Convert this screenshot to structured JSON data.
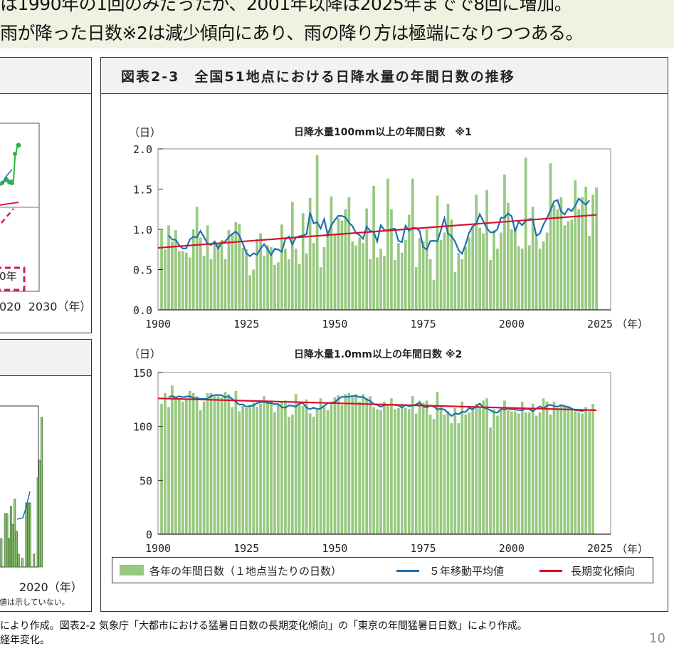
{
  "banner": {
    "line1": "は1990年の1回のみだったが、2001年以降は2025年までで8回に増加。",
    "line2": "雨が降った日数※2は減少傾向にあり、雨の降り方は極端になりつつある。"
  },
  "left_panel_top": {
    "axis_labels": "020  2030（年）",
    "callout": "0年"
  },
  "left_panel_bottom": {
    "axis_label": "2020（年）",
    "note": "値は示していない。"
  },
  "right_panel": {
    "title": "図表2-3　全国51地点における日降水量の年間日数の推移"
  },
  "colors": {
    "bars": "#97c97f",
    "moving_average": "#1f6fb2",
    "trend": "#d7102a",
    "pink_callout": "#d6166a"
  },
  "chart_data": [
    {
      "type": "bar",
      "title": "日降水量100mm以上の年間日数　※1",
      "ylabel": "（日）",
      "xlabel": "（年）",
      "ylim": [
        0,
        2.0
      ],
      "yticks": [
        "0.0",
        "0.5",
        "1.0",
        "1.5",
        "2.0"
      ],
      "xticks": [
        "1900",
        "1925",
        "1950",
        "1975",
        "2000",
        "2025"
      ],
      "xlim": [
        1900,
        2025
      ],
      "start_year": 1901,
      "values": [
        0.99,
        0.75,
        1.05,
        0.85,
        0.99,
        0.73,
        0.73,
        0.71,
        0.65,
        1.0,
        1.28,
        0.9,
        0.67,
        1.05,
        0.63,
        0.86,
        0.82,
        0.87,
        0.63,
        0.99,
        0.94,
        1.09,
        1.07,
        0.77,
        0.75,
        0.43,
        0.5,
        0.88,
        0.95,
        0.67,
        0.8,
        0.78,
        0.56,
        0.59,
        1.06,
        0.76,
        0.63,
        1.34,
        0.76,
        0.57,
        1.2,
        0.7,
        1.39,
        0.83,
        1.92,
        0.53,
        0.78,
        0.99,
        1.41,
        0.93,
        1.14,
        1.11,
        1.25,
        1.4,
        0.85,
        0.8,
        0.9,
        0.83,
        1.26,
        0.63,
        1.54,
        0.65,
        0.76,
        0.67,
        1.63,
        1.25,
        0.62,
        0.83,
        0.71,
        0.87,
        1.18,
        1.63,
        0.53,
        0.89,
        0.85,
        1.0,
        0.63,
        0.37,
        1.42,
        0.87,
        0.96,
        1.32,
        1.12,
        0.47,
        0.71,
        0.63,
        0.78,
        0.9,
        1.05,
        1.43,
        1.02,
        0.95,
        1.49,
        0.62,
        0.99,
        0.76,
        0.96,
        1.68,
        1.33,
        1.0,
        1.02,
        0.79,
        0.76,
        1.89,
        0.8,
        1.28,
        0.9,
        0.76,
        0.85,
        0.96,
        1.82,
        1.3,
        1.25,
        1.4,
        1.05,
        1.1,
        1.12,
        1.61,
        1.25,
        1.4,
        1.53,
        0.92,
        1.43,
        1.52
      ],
      "trend": {
        "from": [
          1900,
          0.77
        ],
        "to": [
          2024,
          1.18
        ]
      },
      "grid": false
    },
    {
      "type": "bar",
      "title": "日降水量1.0mm以上の年間日数 ※2",
      "ylabel": "（日）",
      "xlabel": "（年）",
      "ylim": [
        0,
        150
      ],
      "yticks": [
        "0",
        "50",
        "100",
        "150"
      ],
      "xticks": [
        "1900",
        "1925",
        "1950",
        "1975",
        "2000",
        "2025"
      ],
      "xlim": [
        1900,
        2025
      ],
      "start_year": 1901,
      "values": [
        121,
        131,
        118,
        138,
        128,
        126,
        123,
        125,
        133,
        131,
        128,
        115,
        123,
        131,
        131,
        128,
        128,
        127,
        132,
        130,
        118,
        133,
        114,
        119,
        117,
        119,
        122,
        118,
        121,
        128,
        123,
        124,
        113,
        120,
        123,
        124,
        109,
        111,
        130,
        122,
        119,
        125,
        112,
        109,
        115,
        126,
        118,
        115,
        121,
        127,
        129,
        120,
        130,
        131,
        127,
        130,
        123,
        130,
        126,
        128,
        118,
        116,
        115,
        123,
        119,
        126,
        116,
        117,
        121,
        117,
        116,
        128,
        112,
        124,
        122,
        124,
        111,
        107,
        132,
        118,
        111,
        114,
        103,
        117,
        103,
        123,
        111,
        113,
        117,
        121,
        118,
        124,
        126,
        99,
        116,
        110,
        115,
        124,
        115,
        114,
        114,
        112,
        123,
        113,
        113,
        121,
        110,
        113,
        126,
        123,
        111,
        123,
        117,
        120,
        120,
        119,
        117,
        114,
        113,
        112,
        118,
        114,
        121
      ],
      "trend": {
        "from": [
          1900,
          126
        ],
        "to": [
          2024,
          115
        ]
      },
      "grid": false
    }
  ],
  "legend": {
    "bars": "各年の年間日数（１地点当たりの日数）",
    "moving_average": "５年移動平均値",
    "trend": "長期変化傾向"
  },
  "footnote": {
    "line1": "により作成。図表2-2 気象庁「大都市における猛暑日日数の長期変化傾向」の「東京の年間猛暑日日数」により作成。",
    "line2": "経年変化。"
  },
  "page_number": "10"
}
